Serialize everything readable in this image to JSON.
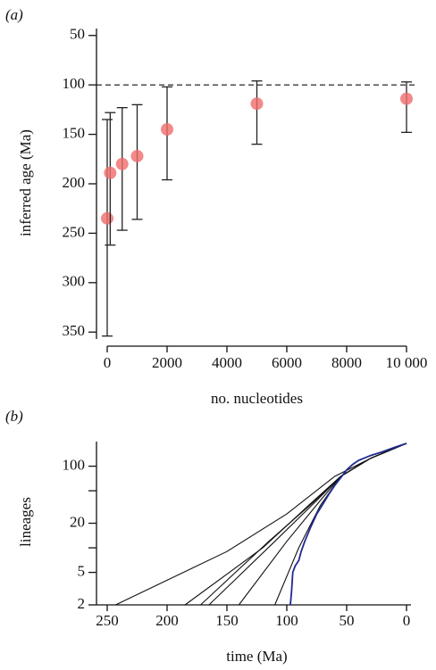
{
  "chart_data": [
    {
      "type": "scatter",
      "panel_label": "(a)",
      "x_label": "no. nucleotides",
      "y_label": "inferred age (Ma)",
      "x": [
        0,
        100,
        500,
        1000,
        2000,
        5000,
        10000
      ],
      "values": [
        235,
        189,
        180,
        172,
        145,
        119,
        114
      ],
      "error_low": [
        135,
        128,
        123,
        120,
        102,
        96,
        97
      ],
      "error_high": [
        354,
        262,
        247,
        236,
        196,
        160,
        148
      ],
      "color": "#f06b6b",
      "xlim": [
        0,
        10000
      ],
      "xticks": [
        0,
        2000,
        4000,
        6000,
        8000,
        {
          "value": 10000,
          "label": "10 000"
        }
      ],
      "ylim": [
        43,
        357
      ],
      "y_inverted": true,
      "yticks": [
        50,
        100,
        150,
        200,
        250,
        300,
        350
      ],
      "hline": 100
    },
    {
      "type": "line",
      "panel_label": "(b)",
      "x_label": "time (Ma)",
      "y_label": "lineages",
      "xlim": [
        250,
        0
      ],
      "xticks": [
        250,
        200,
        150,
        100,
        50,
        0
      ],
      "ylim": [
        2,
        200
      ],
      "y_log": true,
      "yticks": [
        2,
        5,
        20,
        100
      ],
      "yminorticks": [
        10,
        50
      ],
      "series": [
        {
          "color": "#111111",
          "x": [
            243,
            150,
            100,
            60,
            30,
            0
          ],
          "values": [
            2,
            9,
            26,
            75,
            125,
            190
          ]
        },
        {
          "color": "#111111",
          "x": [
            185,
            120,
            80,
            55,
            30,
            0
          ],
          "values": [
            2,
            10,
            35,
            75,
            125,
            190
          ]
        },
        {
          "color": "#111111",
          "x": [
            172,
            115,
            78,
            55,
            30,
            0
          ],
          "values": [
            2,
            12,
            36,
            75,
            125,
            190
          ]
        },
        {
          "color": "#111111",
          "x": [
            165,
            110,
            75,
            55,
            30,
            0
          ],
          "values": [
            2,
            12,
            38,
            75,
            125,
            190
          ]
        },
        {
          "color": "#111111",
          "x": [
            140,
            100,
            72,
            55,
            30,
            0
          ],
          "values": [
            2,
            12,
            38,
            75,
            125,
            190
          ]
        },
        {
          "color": "#111111",
          "x": [
            110,
            90,
            72,
            55,
            30,
            0
          ],
          "values": [
            2,
            10,
            33,
            75,
            125,
            190
          ]
        },
        {
          "color": "#1f2a8f",
          "x": [
            97,
            96,
            95,
            93,
            90,
            88,
            85,
            80,
            75,
            70,
            65,
            60,
            55,
            50,
            45,
            40,
            30,
            20,
            10,
            0
          ],
          "values": [
            2,
            3,
            5,
            6,
            7,
            9,
            12,
            18,
            26,
            34,
            45,
            58,
            72,
            90,
            105,
            118,
            135,
            150,
            170,
            190
          ]
        }
      ]
    }
  ]
}
